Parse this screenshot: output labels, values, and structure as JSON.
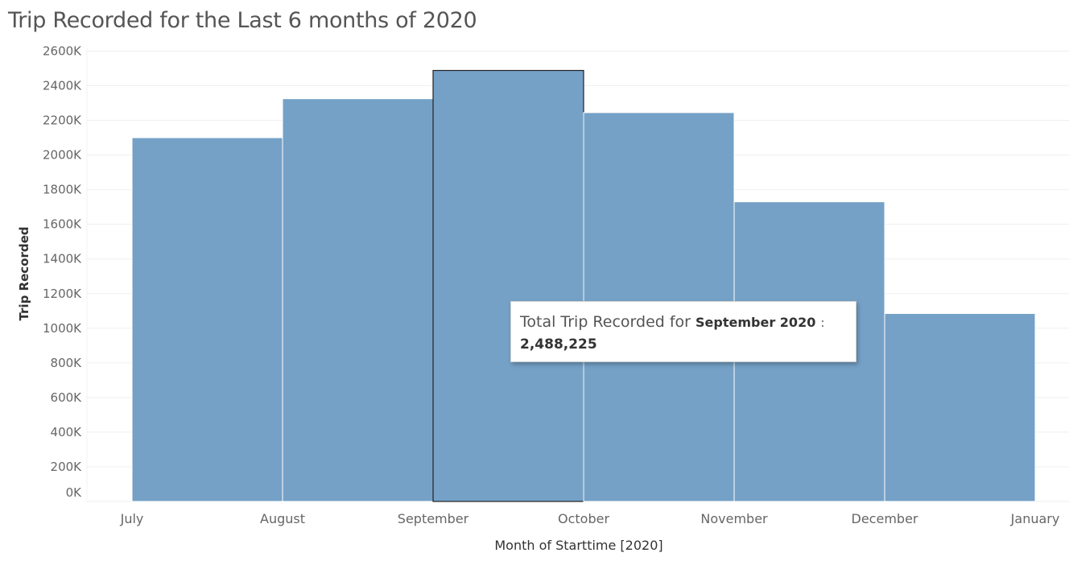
{
  "chart_data": {
    "type": "bar",
    "title": "Trip Recorded for the Last 6 months of 2020",
    "xlabel": "Month of Starttime [2020]",
    "ylabel": "Trip Recorded",
    "categories": [
      "July",
      "August",
      "September",
      "October",
      "November",
      "December"
    ],
    "x_tick_labels": [
      "July",
      "August",
      "September",
      "October",
      "November",
      "December",
      "January"
    ],
    "values": [
      2100000,
      2325000,
      2488225,
      2245000,
      1730000,
      1085000
    ],
    "ylim": [
      0,
      2600000
    ],
    "y_ticks": [
      {
        "value": 0,
        "label": "0K"
      },
      {
        "value": 200000,
        "label": "200K"
      },
      {
        "value": 400000,
        "label": "400K"
      },
      {
        "value": 600000,
        "label": "600K"
      },
      {
        "value": 800000,
        "label": "800K"
      },
      {
        "value": 1000000,
        "label": "1000K"
      },
      {
        "value": 1200000,
        "label": "1200K"
      },
      {
        "value": 1400000,
        "label": "1400K"
      },
      {
        "value": 1600000,
        "label": "1600K"
      },
      {
        "value": 1800000,
        "label": "1800K"
      },
      {
        "value": 2000000,
        "label": "2000K"
      },
      {
        "value": 2200000,
        "label": "2200K"
      },
      {
        "value": 2400000,
        "label": "2400K"
      },
      {
        "value": 2600000,
        "label": "2600K"
      }
    ],
    "grid": true,
    "bar_color": "#75a1c7",
    "highlighted_category": "September"
  },
  "tooltip": {
    "prefix": "Total Trip Recorded for",
    "month": "September 2020",
    "colon": ":",
    "value": "2,488,225"
  }
}
